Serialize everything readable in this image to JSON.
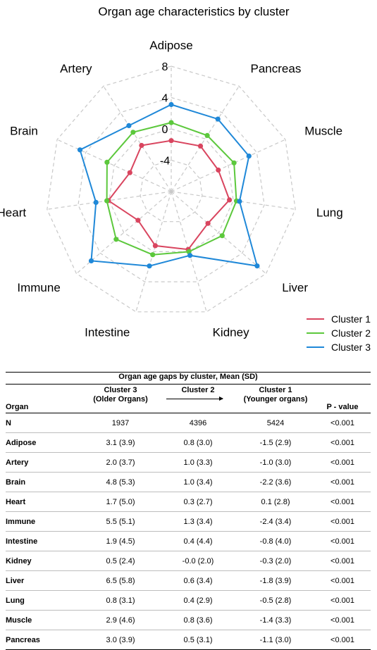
{
  "chart_data": [
    {
      "type": "radar",
      "title": "Organ age characteristics by cluster",
      "axes": [
        "Adipose",
        "Pancreas",
        "Muscle",
        "Lung",
        "Liver",
        "Kidney",
        "Intestine",
        "Immune",
        "Heart",
        "Brain",
        "Artery"
      ],
      "r_ticks": [
        "8",
        "4",
        "0",
        "-4"
      ],
      "r_range": [
        -8,
        8
      ],
      "grid": true,
      "legend_position": "bottom-right",
      "series": [
        {
          "name": "Cluster 1",
          "color": "#d9455f",
          "values": [
            -1.5,
            -1.1,
            -1.4,
            -0.5,
            -1.8,
            -0.3,
            -0.8,
            -2.4,
            0.1,
            -2.2,
            -1.0
          ]
        },
        {
          "name": "Cluster 2",
          "color": "#5cc83c",
          "values": [
            0.8,
            0.5,
            0.8,
            0.4,
            0.6,
            -0.0,
            0.4,
            1.3,
            0.3,
            1.0,
            1.0
          ]
        },
        {
          "name": "Cluster 3",
          "color": "#1f88d8",
          "values": [
            3.1,
            3.0,
            2.9,
            0.8,
            6.5,
            0.5,
            1.9,
            5.5,
            1.7,
            4.8,
            2.0
          ]
        }
      ]
    },
    {
      "type": "table",
      "caption": "Organ age gaps by cluster, Mean (SD)",
      "headers": {
        "organ": "Organ",
        "c3_line1": "Cluster 3",
        "c3_line2": "(Older Organs)",
        "c2_line1": "Cluster 2",
        "c1_line1": "Cluster 1",
        "c1_line2": "(Younger organs)",
        "pvalue": "P - value"
      },
      "rows": [
        {
          "organ": "N",
          "c3": "1937",
          "c2": "4396",
          "c1": "5424",
          "p": "<0.001"
        },
        {
          "organ": "Adipose",
          "c3": "3.1 (3.9)",
          "c2": "0.8 (3.0)",
          "c1": "-1.5 (2.9)",
          "p": "<0.001"
        },
        {
          "organ": "Artery",
          "c3": "2.0 (3.7)",
          "c2": "1.0 (3.3)",
          "c1": "-1.0 (3.0)",
          "p": "<0.001"
        },
        {
          "organ": "Brain",
          "c3": "4.8 (5.3)",
          "c2": "1.0 (3.4)",
          "c1": "-2.2 (3.6)",
          "p": "<0.001"
        },
        {
          "organ": "Heart",
          "c3": "1.7 (5.0)",
          "c2": "0.3 (2.7)",
          "c1": "0.1 (2.8)",
          "p": "<0.001"
        },
        {
          "organ": "Immune",
          "c3": "5.5 (5.1)",
          "c2": "1.3 (3.4)",
          "c1": "-2.4 (3.4)",
          "p": "<0.001"
        },
        {
          "organ": "Intestine",
          "c3": "1.9 (4.5)",
          "c2": "0.4 (4.4)",
          "c1": "-0.8 (4.0)",
          "p": "<0.001"
        },
        {
          "organ": "Kidney",
          "c3": "0.5 (2.4)",
          "c2": "-0.0 (2.0)",
          "c1": "-0.3 (2.0)",
          "p": "<0.001"
        },
        {
          "organ": "Liver",
          "c3": "6.5 (5.8)",
          "c2": "0.6 (3.4)",
          "c1": "-1.8 (3.9)",
          "p": "<0.001"
        },
        {
          "organ": "Lung",
          "c3": "0.8 (3.1)",
          "c2": "0.4 (2.9)",
          "c1": "-0.5 (2.8)",
          "p": "<0.001"
        },
        {
          "organ": "Muscle",
          "c3": "2.9 (4.6)",
          "c2": "0.8 (3.6)",
          "c1": "-1.4 (3.3)",
          "p": "<0.001"
        },
        {
          "organ": "Pancreas",
          "c3": "3.0 (3.9)",
          "c2": "0.5 (3.1)",
          "c1": "-1.1 (3.0)",
          "p": "<0.001"
        }
      ]
    }
  ]
}
